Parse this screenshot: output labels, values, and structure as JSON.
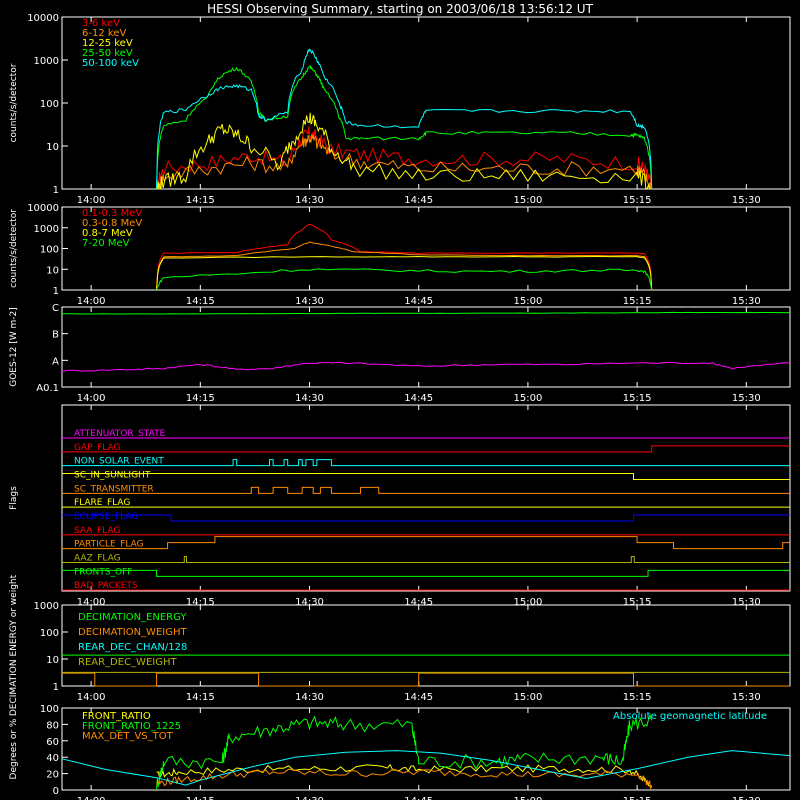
{
  "title": "HESSI Observing Summary, starting on 2003/06/18 13:56:12 UT",
  "time_axis": {
    "ticks": [
      "14:00",
      "14:15",
      "14:30",
      "14:45",
      "15:00",
      "15:15",
      "15:30"
    ],
    "tick_minutes": [
      0,
      15,
      30,
      45,
      60,
      75,
      90
    ],
    "range_minutes": [
      -4,
      96
    ]
  },
  "colors": {
    "red": "#ff0000",
    "orange": "#ff8c00",
    "yellow": "#ffff00",
    "green": "#00ff00",
    "cyan": "#00ffff",
    "magenta": "#ff00ff",
    "blue": "#0000ff",
    "olive": "#b4b400",
    "brown": "#d08000",
    "white": "#ffffff"
  },
  "chart_data": [
    {
      "id": "lightcurves",
      "type": "line",
      "ylabel": "counts/s/detector",
      "yscale": "log",
      "ylim": [
        1,
        10000
      ],
      "ytick_labels": [
        "1",
        "10",
        "100",
        "1000",
        "10000"
      ],
      "series": [
        {
          "name": "3-6 keV",
          "color": "#ff0000",
          "x": [
            9,
            10,
            16,
            22,
            27,
            29,
            30,
            31,
            33,
            38,
            45,
            55,
            65,
            75,
            76,
            77
          ],
          "y": [
            1,
            3,
            4,
            6,
            4,
            15,
            20,
            15,
            8,
            6,
            5,
            5,
            5,
            4,
            3,
            1
          ]
        },
        {
          "name": "6-12 keV",
          "color": "#ff8c00",
          "x": [
            9,
            10,
            16,
            22,
            27,
            29,
            30,
            31,
            33,
            38,
            45,
            55,
            65,
            75,
            76,
            77
          ],
          "y": [
            1,
            2,
            3,
            4,
            3,
            12,
            16,
            12,
            6,
            4,
            3,
            3,
            3,
            3,
            2,
            1
          ]
        },
        {
          "name": "12-25 keV",
          "color": "#ffff00",
          "x": [
            9,
            10,
            13,
            16,
            18,
            20,
            22,
            26,
            28,
            30,
            31,
            33,
            36,
            45,
            55,
            65,
            75,
            77
          ],
          "y": [
            1,
            1.5,
            2,
            12,
            25,
            18,
            10,
            3,
            15,
            45,
            30,
            8,
            3,
            2,
            2,
            2,
            2,
            1
          ]
        },
        {
          "name": "25-50 keV",
          "color": "#00ff00",
          "x": [
            9,
            10,
            13,
            16,
            18,
            20,
            22,
            23,
            24,
            27,
            29,
            30,
            31,
            32,
            34,
            35,
            37,
            45,
            46,
            55,
            65,
            74,
            75,
            76,
            77
          ],
          "y": [
            1,
            30,
            40,
            130,
            450,
            650,
            300,
            60,
            40,
            50,
            400,
            700,
            450,
            200,
            50,
            15,
            15,
            15,
            20,
            20,
            20,
            18,
            18,
            15,
            1
          ]
        },
        {
          "name": "50-100 keV",
          "color": "#00ffff",
          "x": [
            9,
            10,
            13,
            16,
            18,
            20,
            22,
            23,
            24,
            27,
            29,
            30,
            31,
            32,
            34,
            35,
            37,
            45,
            46,
            55,
            65,
            74,
            75,
            76,
            77
          ],
          "y": [
            1,
            60,
            70,
            150,
            230,
            250,
            200,
            50,
            40,
            60,
            600,
            1800,
            1000,
            400,
            100,
            35,
            30,
            28,
            65,
            65,
            65,
            65,
            30,
            28,
            1
          ]
        }
      ]
    },
    {
      "id": "gamma",
      "type": "line",
      "ylabel": "counts/s/detector",
      "yscale": "log",
      "ylim": [
        1,
        10000
      ],
      "ytick_labels": [
        "1",
        "10",
        "100",
        "1000",
        "10000"
      ],
      "series": [
        {
          "name": "0.1-0.3 MeV",
          "color": "#ff0000",
          "x": [
            9,
            10,
            20,
            27,
            29,
            30,
            31,
            33,
            37,
            45,
            60,
            75,
            76,
            77
          ],
          "y": [
            1,
            60,
            65,
            150,
            800,
            1500,
            1000,
            250,
            70,
            60,
            60,
            60,
            55,
            1
          ]
        },
        {
          "name": "0.3-0.8 MeV",
          "color": "#ff8c00",
          "x": [
            9,
            10,
            20,
            28,
            30,
            32,
            36,
            45,
            60,
            75,
            76,
            77
          ],
          "y": [
            1,
            40,
            45,
            100,
            200,
            150,
            70,
            50,
            45,
            45,
            40,
            1
          ]
        },
        {
          "name": "0.8-7 MeV",
          "color": "#ffff00",
          "x": [
            9,
            10,
            30,
            45,
            60,
            75,
            76,
            77
          ],
          "y": [
            1,
            35,
            40,
            40,
            40,
            40,
            35,
            1
          ]
        },
        {
          "name": "7-20 MeV",
          "color": "#00ff00",
          "x": [
            9,
            10,
            20,
            30,
            40,
            50,
            60,
            70,
            75,
            76,
            77
          ],
          "y": [
            1,
            4,
            6,
            10,
            9,
            8,
            8,
            9,
            9,
            8,
            1
          ]
        }
      ]
    },
    {
      "id": "goes",
      "type": "line",
      "ylabel": "GOES-12 [W m-2]",
      "yscale": "log",
      "ylim": [
        1e-09,
        1e-06
      ],
      "ytick_labels": [
        "A0.1",
        "A",
        "B",
        "C"
      ],
      "ytick_values": [
        1e-09,
        1e-08,
        1e-07,
        1e-06
      ],
      "series": [
        {
          "name": "",
          "color": "#00ff00",
          "x": [
            -4,
            10,
            20,
            30,
            40,
            50,
            60,
            70,
            80,
            90,
            96
          ],
          "y": [
            5.5e-07,
            5.5e-07,
            5.6e-07,
            5.7e-07,
            5.8e-07,
            5.8e-07,
            5.9e-07,
            6e-07,
            6.2e-07,
            6.2e-07,
            6.2e-07
          ]
        },
        {
          "name": "",
          "color": "#ff00ff",
          "x": [
            -4,
            5,
            10,
            15,
            20,
            25,
            30,
            35,
            45,
            55,
            65,
            75,
            85,
            88,
            96
          ],
          "y": [
            4e-09,
            4.5e-09,
            5e-09,
            7e-09,
            4.5e-09,
            5e-09,
            8e-09,
            8e-09,
            6e-09,
            7e-09,
            7e-09,
            8e-09,
            8e-09,
            5e-09,
            8e-09
          ]
        }
      ]
    },
    {
      "id": "flags",
      "type": "line",
      "ylabel": "Flags",
      "flags": [
        {
          "name": "ATTENUATOR_STATE",
          "color": "#ff00ff",
          "steps": [
            [
              -4,
              0
            ]
          ]
        },
        {
          "name": "GAP_FLAG",
          "color": "#ff0000",
          "steps": [
            [
              -4,
              0
            ],
            [
              77,
              1
            ]
          ]
        },
        {
          "name": "NON_SOLAR_EVENT",
          "color": "#00ffff",
          "steps": [
            [
              -4,
              0
            ],
            [
              19.5,
              1
            ],
            [
              20,
              0
            ],
            [
              24.5,
              1
            ],
            [
              25,
              0
            ],
            [
              26.5,
              1
            ],
            [
              27,
              0
            ],
            [
              28.5,
              1
            ],
            [
              29,
              0
            ],
            [
              29.5,
              1
            ],
            [
              30.5,
              0
            ],
            [
              31,
              1
            ],
            [
              33,
              0
            ]
          ]
        },
        {
          "name": "SC_IN_SUNLIGHT",
          "color": "#ffff00",
          "steps": [
            [
              -4,
              1
            ],
            [
              74.5,
              0
            ]
          ]
        },
        {
          "name": "SC_TRANSMITTER",
          "color": "#ff8c00",
          "steps": [
            [
              -4,
              0
            ],
            [
              22,
              1
            ],
            [
              23,
              0
            ],
            [
              25,
              1
            ],
            [
              27,
              0
            ],
            [
              29,
              1
            ],
            [
              30.5,
              0
            ],
            [
              31.5,
              1
            ],
            [
              33,
              0
            ],
            [
              37,
              1
            ],
            [
              39.5,
              0
            ]
          ]
        },
        {
          "name": "FLARE_FLAG",
          "color": "#ffff00",
          "steps": [
            [
              -4,
              0
            ]
          ]
        },
        {
          "name": "ECLIPSE_FLAG",
          "color": "#0000ff",
          "steps": [
            [
              -4,
              1
            ],
            [
              11,
              0
            ],
            [
              74.5,
              1
            ]
          ]
        },
        {
          "name": "SAA_FLAG",
          "color": "#ff0000",
          "steps": [
            [
              -4,
              0
            ]
          ]
        },
        {
          "name": "PARTICLE_FLAG",
          "color": "#ff8c00",
          "steps": [
            [
              -4,
              0
            ],
            [
              10.5,
              1
            ],
            [
              17,
              2
            ],
            [
              75,
              1
            ],
            [
              80,
              0
            ],
            [
              95,
              1
            ]
          ]
        },
        {
          "name": "AAZ_FLAG",
          "color": "#b4b400",
          "steps": [
            [
              -4,
              0
            ],
            [
              12.8,
              1
            ],
            [
              13.1,
              0
            ],
            [
              74.2,
              1
            ],
            [
              74.6,
              0
            ]
          ]
        },
        {
          "name": "FRONTS_OFF",
          "color": "#00ff00",
          "steps": [
            [
              -4,
              1
            ],
            [
              9,
              0
            ],
            [
              76.5,
              1
            ]
          ]
        },
        {
          "name": "BAD_PACKETS",
          "color": "#ff0000",
          "steps": [
            [
              -4,
              0
            ]
          ]
        }
      ]
    },
    {
      "id": "decimation",
      "type": "line",
      "ylabel": "DECIMATION ENERGY or weight",
      "yscale": "log",
      "ylim": [
        1,
        1000
      ],
      "ytick_labels": [
        "1",
        "10",
        "100",
        "1000"
      ],
      "series": [
        {
          "name": "DECIMATION_ENERGY",
          "color": "#00ff00",
          "x": [
            -4,
            96
          ],
          "y": [
            14,
            14
          ]
        },
        {
          "name": "DECIMATION_WEIGHT",
          "color": "#ff8c00",
          "x": [
            -4,
            0.5,
            0.5,
            9,
            9,
            23,
            23,
            45,
            45,
            74.5,
            74.5,
            96
          ],
          "y": [
            3,
            3,
            1,
            1,
            3,
            3,
            1,
            1,
            3,
            3,
            1,
            1
          ]
        },
        {
          "name": "REAR_DEC_CHAN/128",
          "color": "#00ffff",
          "x": [],
          "y": []
        },
        {
          "name": "REAR_DEC_WEIGHT",
          "color": "#b4b400",
          "x": [
            -4,
            96
          ],
          "y": [
            3.2,
            3.2
          ]
        }
      ]
    },
    {
      "id": "ratios",
      "type": "line",
      "ylabel": "Degrees or %",
      "ylim": [
        0,
        100
      ],
      "ytick_labels": [
        "0",
        "20",
        "40",
        "60",
        "80",
        "100"
      ],
      "annotation": "Absolute geomagnetic latitude",
      "series": [
        {
          "name": "FRONT_RATIO",
          "color": "#ffff00",
          "x": [
            9,
            12,
            20,
            30,
            40,
            45,
            55,
            65,
            74,
            77
          ],
          "y": [
            18,
            22,
            25,
            26,
            27,
            25,
            26,
            26,
            25,
            5
          ]
        },
        {
          "name": "FRONT_RATIO_1225",
          "color": "#00ff00",
          "x": [
            9,
            10,
            18,
            19,
            25,
            30,
            35,
            44,
            45,
            55,
            60,
            70,
            73,
            74,
            77
          ],
          "y": [
            5,
            35,
            35,
            65,
            75,
            82,
            80,
            80,
            35,
            35,
            38,
            40,
            35,
            80,
            85
          ]
        },
        {
          "name": "MAX_DET_VS_TOT",
          "color": "#ff8c00",
          "x": [
            9,
            12,
            18,
            25,
            35,
            45,
            55,
            65,
            75,
            77
          ],
          "y": [
            8,
            12,
            18,
            22,
            20,
            22,
            20,
            18,
            20,
            5
          ]
        },
        {
          "name": "Absolute geomagnetic latitude",
          "color": "#00ffff",
          "x": [
            -4,
            2,
            9,
            13,
            15,
            22,
            28,
            35,
            42,
            48,
            55,
            62,
            68,
            75,
            82,
            88,
            96
          ],
          "y": [
            38,
            25,
            15,
            6,
            12,
            28,
            40,
            46,
            48,
            45,
            36,
            24,
            14,
            26,
            40,
            48,
            42
          ]
        }
      ]
    }
  ]
}
